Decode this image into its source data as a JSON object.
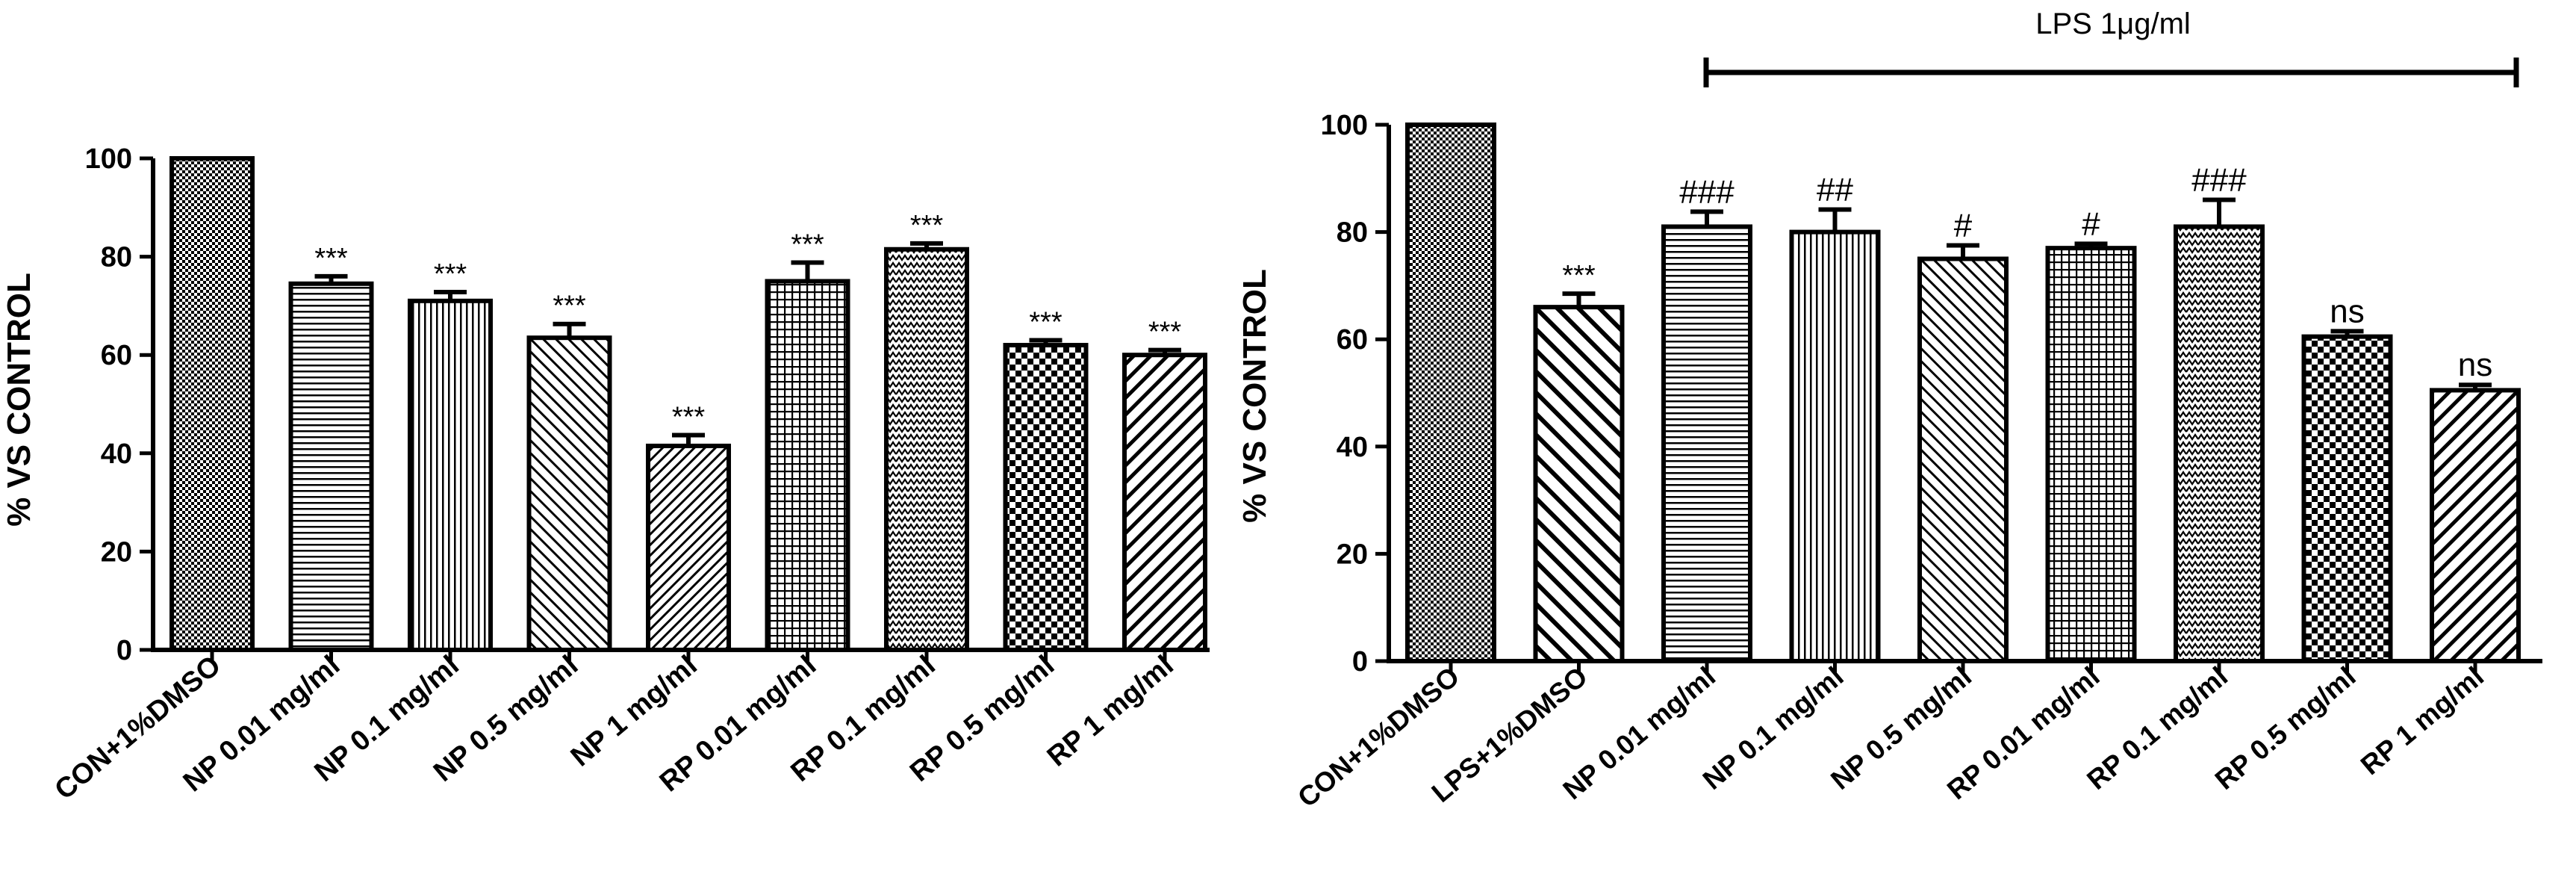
{
  "chart_data": [
    {
      "type": "bar",
      "ylabel": "% VS CONTROL",
      "ylim": [
        0,
        100
      ],
      "yticks": [
        0,
        20,
        40,
        60,
        80,
        100
      ],
      "categories": [
        "CON+1%DMSO",
        "NP 0.01 mg/ml",
        "NP 0.1 mg/ml",
        "NP 0.5 mg/ml",
        "NP 1 mg/ml",
        "RP 0.01 mg/ml",
        "RP 0.1 mg/ml",
        "RP 0.5 mg/ml",
        "RP 1 mg/ml"
      ],
      "values": [
        100,
        74.5,
        71,
        63.5,
        41.5,
        75,
        81.5,
        62,
        60
      ],
      "errors": [
        0,
        1.5,
        1.8,
        2.8,
        2.2,
        3.8,
        1.2,
        1,
        1
      ],
      "significance": [
        "",
        "***",
        "***",
        "***",
        "***",
        "***",
        "***",
        "***",
        "***"
      ],
      "patterns": [
        "checker-fine",
        "hlines",
        "vlines",
        "diag-right",
        "diag-left-dense",
        "grid",
        "zigzag",
        "checker-coarse",
        "diag-left"
      ]
    },
    {
      "type": "bar",
      "title": "LPS 1μg/ml",
      "ylabel": "% VS CONTROL",
      "ylim": [
        0,
        100
      ],
      "yticks": [
        0,
        20,
        40,
        60,
        80,
        100
      ],
      "categories": [
        "CON+1%DMSO",
        "LPS+1%DMSO",
        "NP 0.01 mg/ml",
        "NP 0.1 mg/ml",
        "NP 0.5 mg/ml",
        "RP 0.01 mg/ml",
        "RP 0.1 mg/ml",
        "RP 0.5 mg/ml",
        "RP 1 mg/ml"
      ],
      "values": [
        100,
        66,
        81,
        80,
        75,
        77,
        81,
        60.5,
        50.5
      ],
      "errors": [
        0,
        2.5,
        2.8,
        4.2,
        2.5,
        0.8,
        5,
        1,
        1
      ],
      "significance": [
        "",
        "***",
        "###",
        "##",
        "#",
        "#",
        "###",
        "ns",
        "ns"
      ],
      "patterns": [
        "checker-fine",
        "diag-right-wide",
        "hlines",
        "vlines",
        "diag-right",
        "grid",
        "zigzag",
        "checker-coarse",
        "diag-left"
      ]
    }
  ]
}
